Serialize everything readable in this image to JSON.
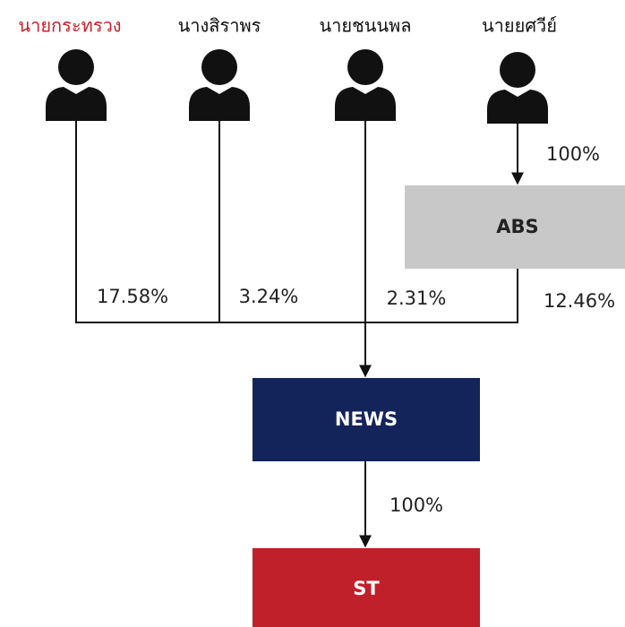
{
  "people": [
    {
      "label": "นายกระทรวง"
    },
    {
      "label": "นางสิราพร"
    },
    {
      "label": "นายชนนพล"
    },
    {
      "label": "นายยศวีย์"
    }
  ],
  "boxes": [
    {
      "label": "ABS"
    },
    {
      "label": "NEWS"
    },
    {
      "label": "ST"
    }
  ],
  "edges": [
    {
      "from": "นายยศวีย์",
      "to": "ABS",
      "label": "100%"
    },
    {
      "from": "นายกระทรวง",
      "to": "NEWS",
      "label": "17.58%"
    },
    {
      "from": "นางสิราพร",
      "to": "NEWS",
      "label": "3.24%"
    },
    {
      "from": "นายชนนพล",
      "to": "NEWS",
      "label": "2.31%"
    },
    {
      "from": "ABS",
      "to": "NEWS",
      "label": "12.46%"
    },
    {
      "from": "NEWS",
      "to": "ST",
      "label": "100%"
    }
  ]
}
